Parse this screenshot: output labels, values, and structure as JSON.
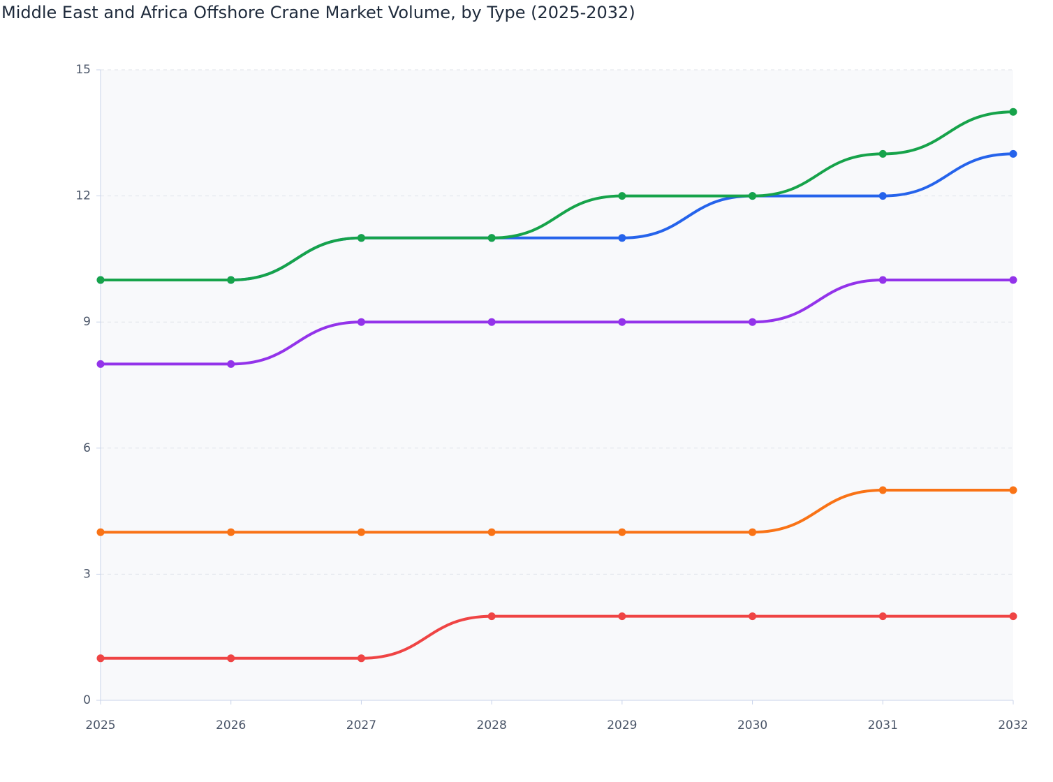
{
  "chart_data": {
    "type": "line",
    "title": "Middle East and Africa Offshore Crane Market Volume, by Type (2025-2032)",
    "categories": [
      "2025",
      "2026",
      "2027",
      "2028",
      "2029",
      "2030",
      "2031",
      "2032"
    ],
    "series": [
      {
        "color": "#2563eb",
        "values": [
          10,
          10,
          11,
          11,
          11,
          12,
          12,
          13
        ]
      },
      {
        "color": "#16a34a",
        "values": [
          10,
          10,
          11,
          11,
          12,
          12,
          13,
          14
        ]
      },
      {
        "color": "#9333ea",
        "values": [
          8,
          8,
          9,
          9,
          9,
          9,
          10,
          10
        ]
      },
      {
        "color": "#f97316",
        "values": [
          4,
          4,
          4,
          4,
          4,
          4,
          5,
          5
        ]
      },
      {
        "color": "#ef4444",
        "values": [
          1,
          1,
          1,
          2,
          2,
          2,
          2,
          2
        ]
      }
    ],
    "ylim": [
      0,
      15
    ],
    "yticks": [
      0,
      3,
      6,
      9,
      12,
      15
    ],
    "grid": true
  }
}
